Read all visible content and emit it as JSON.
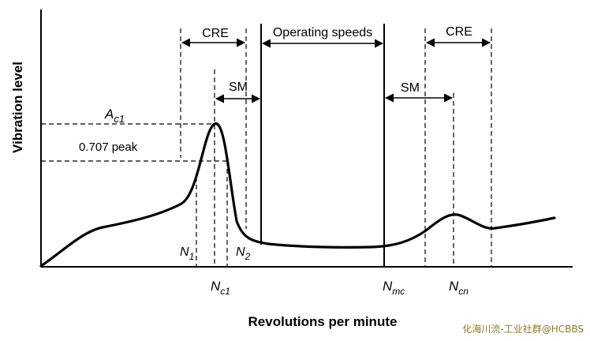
{
  "axes": {
    "y_title": "Vibration level",
    "x_title": "Revolutions per minute"
  },
  "labels": {
    "cre_left": "CRE",
    "cre_right": "CRE",
    "operating_speeds": "Operating speeds",
    "sm_left": "SM",
    "sm_right": "SM",
    "peak_amplitude_main": "A",
    "peak_amplitude_sub": "c1",
    "half_power": "0.707 peak",
    "n1_main": "N",
    "n1_sub": "1",
    "n2_main": "N",
    "n2_sub": "2",
    "nc1_main": "N",
    "nc1_sub": "c1",
    "nmc_main": "N",
    "nmc_sub": "mc",
    "ncn_main": "N",
    "ncn_sub": "cn"
  },
  "watermark": "化海川流-工业社群@HCBBS",
  "colors": {
    "line": "#000000",
    "watermark": "#8a7a2a"
  }
}
